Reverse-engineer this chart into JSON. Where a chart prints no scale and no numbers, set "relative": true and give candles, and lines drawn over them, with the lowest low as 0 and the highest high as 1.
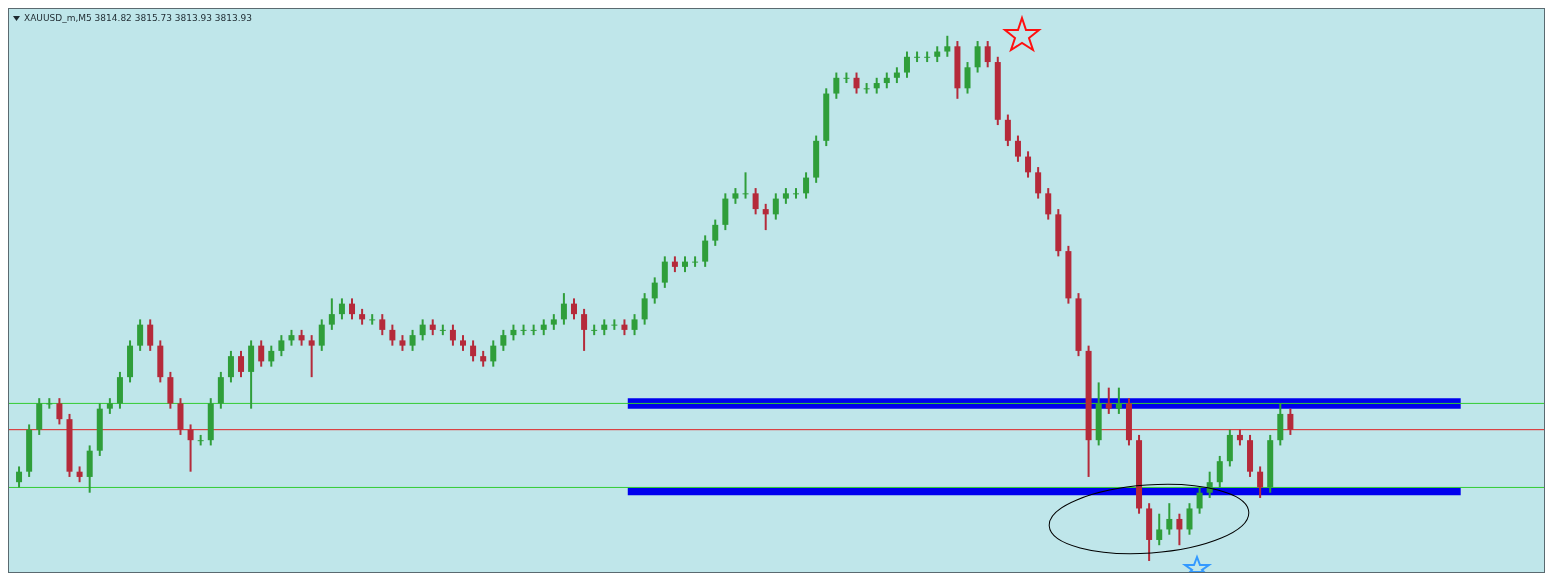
{
  "chart_data": {
    "type": "candlestick",
    "title": "XAUUSD_m,M5  3814.82 3815.73 3813.93 3813.93",
    "relative": true,
    "categories": [
      null,
      null,
      null,
      null,
      null,
      null,
      null,
      null,
      null,
      null,
      null,
      null,
      null,
      null,
      null,
      null,
      null,
      null,
      null,
      null,
      null,
      null,
      null,
      null,
      null,
      null,
      null,
      null,
      null,
      null,
      null,
      null,
      null,
      null,
      null,
      null,
      null,
      null,
      null,
      null,
      null,
      null,
      null,
      null,
      null,
      null,
      null,
      null,
      null,
      null,
      null,
      null,
      null,
      null,
      null,
      null,
      null,
      null,
      null,
      null,
      null,
      null,
      null,
      null,
      null,
      null,
      null,
      null,
      null,
      null,
      null,
      null,
      null,
      null,
      null,
      null,
      null,
      null,
      null,
      null,
      null,
      null,
      null,
      null,
      null,
      null,
      null,
      null,
      null,
      null,
      null,
      null,
      null,
      null,
      null,
      null,
      null,
      null,
      null,
      null,
      null,
      null,
      null,
      null,
      null,
      null,
      null,
      null,
      null,
      null,
      null,
      null,
      null,
      null,
      null,
      null,
      null,
      null,
      null,
      null,
      null,
      null,
      null,
      null,
      null,
      null,
      null
    ],
    "ohlc": [
      [
        0.15,
        0.18,
        0.14,
        0.17
      ],
      [
        0.17,
        0.26,
        0.16,
        0.25
      ],
      [
        0.25,
        0.31,
        0.24,
        0.3
      ],
      [
        0.3,
        0.31,
        0.29,
        0.3
      ],
      [
        0.3,
        0.31,
        0.26,
        0.27
      ],
      [
        0.27,
        0.28,
        0.16,
        0.17
      ],
      [
        0.17,
        0.18,
        0.15,
        0.16
      ],
      [
        0.16,
        0.22,
        0.13,
        0.21
      ],
      [
        0.21,
        0.3,
        0.2,
        0.29
      ],
      [
        0.29,
        0.31,
        0.28,
        0.3
      ],
      [
        0.3,
        0.36,
        0.29,
        0.35
      ],
      [
        0.35,
        0.42,
        0.34,
        0.41
      ],
      [
        0.41,
        0.46,
        0.4,
        0.45
      ],
      [
        0.45,
        0.46,
        0.4,
        0.41
      ],
      [
        0.41,
        0.42,
        0.34,
        0.35
      ],
      [
        0.35,
        0.36,
        0.29,
        0.3
      ],
      [
        0.3,
        0.31,
        0.24,
        0.25
      ],
      [
        0.25,
        0.26,
        0.17,
        0.23
      ],
      [
        0.23,
        0.24,
        0.22,
        0.23
      ],
      [
        0.23,
        0.31,
        0.22,
        0.3
      ],
      [
        0.3,
        0.36,
        0.29,
        0.35
      ],
      [
        0.35,
        0.4,
        0.34,
        0.39
      ],
      [
        0.39,
        0.4,
        0.35,
        0.36
      ],
      [
        0.36,
        0.42,
        0.29,
        0.41
      ],
      [
        0.41,
        0.42,
        0.37,
        0.38
      ],
      [
        0.38,
        0.41,
        0.37,
        0.4
      ],
      [
        0.4,
        0.43,
        0.39,
        0.42
      ],
      [
        0.42,
        0.44,
        0.41,
        0.43
      ],
      [
        0.43,
        0.44,
        0.41,
        0.42
      ],
      [
        0.42,
        0.43,
        0.35,
        0.41
      ],
      [
        0.41,
        0.46,
        0.4,
        0.45
      ],
      [
        0.45,
        0.5,
        0.44,
        0.47
      ],
      [
        0.47,
        0.5,
        0.46,
        0.49
      ],
      [
        0.49,
        0.5,
        0.46,
        0.47
      ],
      [
        0.47,
        0.48,
        0.45,
        0.46
      ],
      [
        0.46,
        0.47,
        0.45,
        0.46
      ],
      [
        0.46,
        0.47,
        0.43,
        0.44
      ],
      [
        0.44,
        0.45,
        0.41,
        0.42
      ],
      [
        0.42,
        0.43,
        0.4,
        0.41
      ],
      [
        0.41,
        0.44,
        0.4,
        0.43
      ],
      [
        0.43,
        0.46,
        0.42,
        0.45
      ],
      [
        0.45,
        0.46,
        0.43,
        0.44
      ],
      [
        0.44,
        0.45,
        0.43,
        0.44
      ],
      [
        0.44,
        0.45,
        0.41,
        0.42
      ],
      [
        0.42,
        0.43,
        0.4,
        0.41
      ],
      [
        0.41,
        0.42,
        0.38,
        0.39
      ],
      [
        0.39,
        0.4,
        0.37,
        0.38
      ],
      [
        0.38,
        0.42,
        0.37,
        0.41
      ],
      [
        0.41,
        0.44,
        0.4,
        0.43
      ],
      [
        0.43,
        0.45,
        0.42,
        0.44
      ],
      [
        0.44,
        0.45,
        0.43,
        0.44
      ],
      [
        0.44,
        0.45,
        0.43,
        0.44
      ],
      [
        0.44,
        0.46,
        0.43,
        0.45
      ],
      [
        0.45,
        0.47,
        0.44,
        0.46
      ],
      [
        0.46,
        0.51,
        0.45,
        0.49
      ],
      [
        0.49,
        0.5,
        0.46,
        0.47
      ],
      [
        0.47,
        0.48,
        0.4,
        0.44
      ],
      [
        0.44,
        0.45,
        0.43,
        0.44
      ],
      [
        0.44,
        0.46,
        0.43,
        0.45
      ],
      [
        0.45,
        0.46,
        0.44,
        0.45
      ],
      [
        0.45,
        0.46,
        0.43,
        0.44
      ],
      [
        0.44,
        0.47,
        0.43,
        0.46
      ],
      [
        0.46,
        0.51,
        0.45,
        0.5
      ],
      [
        0.5,
        0.54,
        0.49,
        0.53
      ],
      [
        0.53,
        0.58,
        0.52,
        0.57
      ],
      [
        0.57,
        0.58,
        0.55,
        0.56
      ],
      [
        0.56,
        0.58,
        0.55,
        0.57
      ],
      [
        0.57,
        0.58,
        0.56,
        0.57
      ],
      [
        0.57,
        0.62,
        0.56,
        0.61
      ],
      [
        0.61,
        0.65,
        0.6,
        0.64
      ],
      [
        0.64,
        0.7,
        0.63,
        0.69
      ],
      [
        0.69,
        0.71,
        0.68,
        0.7
      ],
      [
        0.7,
        0.74,
        0.69,
        0.7
      ],
      [
        0.7,
        0.71,
        0.66,
        0.67
      ],
      [
        0.67,
        0.68,
        0.63,
        0.66
      ],
      [
        0.66,
        0.7,
        0.65,
        0.69
      ],
      [
        0.69,
        0.71,
        0.68,
        0.7
      ],
      [
        0.7,
        0.71,
        0.69,
        0.7
      ],
      [
        0.7,
        0.74,
        0.69,
        0.73
      ],
      [
        0.73,
        0.81,
        0.72,
        0.8
      ],
      [
        0.8,
        0.9,
        0.79,
        0.89
      ],
      [
        0.89,
        0.93,
        0.88,
        0.92
      ],
      [
        0.92,
        0.93,
        0.91,
        0.92
      ],
      [
        0.92,
        0.93,
        0.89,
        0.9
      ],
      [
        0.9,
        0.91,
        0.89,
        0.9
      ],
      [
        0.9,
        0.92,
        0.89,
        0.91
      ],
      [
        0.91,
        0.93,
        0.9,
        0.92
      ],
      [
        0.92,
        0.94,
        0.91,
        0.93
      ],
      [
        0.93,
        0.97,
        0.92,
        0.96
      ],
      [
        0.96,
        0.97,
        0.95,
        0.96
      ],
      [
        0.96,
        0.97,
        0.95,
        0.96
      ],
      [
        0.96,
        0.98,
        0.95,
        0.97
      ],
      [
        0.97,
        1.0,
        0.96,
        0.98
      ],
      [
        0.98,
        0.99,
        0.88,
        0.9
      ],
      [
        0.9,
        0.95,
        0.89,
        0.94
      ],
      [
        0.94,
        0.99,
        0.93,
        0.98
      ],
      [
        0.98,
        0.99,
        0.94,
        0.95
      ],
      [
        0.95,
        0.96,
        0.83,
        0.84
      ],
      [
        0.84,
        0.85,
        0.79,
        0.8
      ],
      [
        0.8,
        0.81,
        0.76,
        0.77
      ],
      [
        0.77,
        0.78,
        0.73,
        0.74
      ],
      [
        0.74,
        0.75,
        0.69,
        0.7
      ],
      [
        0.7,
        0.71,
        0.65,
        0.66
      ],
      [
        0.66,
        0.67,
        0.58,
        0.59
      ],
      [
        0.59,
        0.6,
        0.49,
        0.5
      ],
      [
        0.5,
        0.51,
        0.39,
        0.4
      ],
      [
        0.4,
        0.41,
        0.16,
        0.23
      ],
      [
        0.23,
        0.34,
        0.22,
        0.3
      ],
      [
        0.3,
        0.33,
        0.28,
        0.29
      ],
      [
        0.29,
        0.33,
        0.28,
        0.3
      ],
      [
        0.3,
        0.31,
        0.22,
        0.23
      ],
      [
        0.23,
        0.24,
        0.09,
        0.1
      ],
      [
        0.1,
        0.11,
        0.0,
        0.04
      ],
      [
        0.04,
        0.09,
        0.03,
        0.06
      ],
      [
        0.06,
        0.11,
        0.05,
        0.08
      ],
      [
        0.08,
        0.09,
        0.03,
        0.06
      ],
      [
        0.06,
        0.11,
        0.05,
        0.1
      ],
      [
        0.1,
        0.14,
        0.09,
        0.13
      ],
      [
        0.13,
        0.17,
        0.12,
        0.15
      ],
      [
        0.15,
        0.2,
        0.14,
        0.19
      ],
      [
        0.19,
        0.25,
        0.18,
        0.24
      ],
      [
        0.24,
        0.25,
        0.22,
        0.23
      ],
      [
        0.23,
        0.24,
        0.16,
        0.17
      ],
      [
        0.17,
        0.18,
        0.12,
        0.14
      ],
      [
        0.14,
        0.24,
        0.13,
        0.23
      ],
      [
        0.23,
        0.3,
        0.22,
        0.28
      ],
      [
        0.28,
        0.29,
        0.24,
        0.25
      ]
    ],
    "colors": [
      "#2f9e3a",
      "#2f9e3a",
      "#2f9e3a",
      "#2f9e3a",
      "#b52a3a",
      "#b52a3a",
      "#b52a3a",
      "#2f9e3a",
      "#2f9e3a",
      "#2f9e3a",
      "#2f9e3a",
      "#2f9e3a",
      "#2f9e3a",
      "#b52a3a",
      "#b52a3a",
      "#b52a3a",
      "#b52a3a",
      "#b52a3a",
      "#2f9e3a",
      "#2f9e3a",
      "#2f9e3a",
      "#2f9e3a",
      "#b52a3a",
      "#2f9e3a",
      "#b52a3a",
      "#2f9e3a",
      "#2f9e3a",
      "#2f9e3a",
      "#b52a3a",
      "#b52a3a",
      "#2f9e3a",
      "#2f9e3a",
      "#2f9e3a",
      "#b52a3a",
      "#b52a3a",
      "#2f9e3a",
      "#b52a3a",
      "#b52a3a",
      "#b52a3a",
      "#2f9e3a",
      "#2f9e3a",
      "#b52a3a",
      "#2f9e3a",
      "#b52a3a",
      "#b52a3a",
      "#b52a3a",
      "#b52a3a",
      "#2f9e3a",
      "#2f9e3a",
      "#2f9e3a",
      "#2f9e3a",
      "#2f9e3a",
      "#2f9e3a",
      "#2f9e3a",
      "#2f9e3a",
      "#b52a3a",
      "#b52a3a",
      "#2f9e3a",
      "#2f9e3a",
      "#2f9e3a",
      "#b52a3a",
      "#2f9e3a",
      "#2f9e3a",
      "#2f9e3a",
      "#2f9e3a",
      "#b52a3a",
      "#2f9e3a",
      "#2f9e3a",
      "#2f9e3a",
      "#2f9e3a",
      "#2f9e3a",
      "#2f9e3a",
      "#2f9e3a",
      "#b52a3a",
      "#b52a3a",
      "#2f9e3a",
      "#2f9e3a",
      "#2f9e3a",
      "#2f9e3a",
      "#2f9e3a",
      "#2f9e3a",
      "#2f9e3a",
      "#2f9e3a",
      "#b52a3a",
      "#2f9e3a",
      "#2f9e3a",
      "#2f9e3a",
      "#2f9e3a",
      "#2f9e3a",
      "#2f9e3a",
      "#2f9e3a",
      "#2f9e3a",
      "#2f9e3a",
      "#b52a3a",
      "#2f9e3a",
      "#2f9e3a",
      "#b52a3a",
      "#b52a3a",
      "#b52a3a",
      "#b52a3a",
      "#b52a3a",
      "#b52a3a",
      "#b52a3a",
      "#b52a3a",
      "#b52a3a",
      "#b52a3a",
      "#b52a3a",
      "#2f9e3a",
      "#b52a3a",
      "#2f9e3a",
      "#b52a3a",
      "#b52a3a",
      "#b52a3a",
      "#2f9e3a",
      "#2f9e3a",
      "#b52a3a",
      "#2f9e3a",
      "#2f9e3a",
      "#2f9e3a",
      "#2f9e3a",
      "#2f9e3a",
      "#b52a3a",
      "#b52a3a",
      "#b52a3a",
      "#2f9e3a",
      "#2f9e3a",
      "#b52a3a"
    ],
    "ref_lines": [
      {
        "axis": "y",
        "value": 0.3,
        "color": "#33cc33"
      },
      {
        "axis": "y",
        "value": 0.14,
        "color": "#33cc33"
      },
      {
        "axis": "y",
        "value": 0.25,
        "color": "#e02020"
      }
    ],
    "bands": [
      {
        "axis": "y",
        "from": 0.29,
        "to": 0.31,
        "color": "#0000ee"
      },
      {
        "axis": "y",
        "from": 0.125,
        "to": 0.14,
        "color": "#0000ee"
      }
    ],
    "grid": false,
    "legend": false
  }
}
